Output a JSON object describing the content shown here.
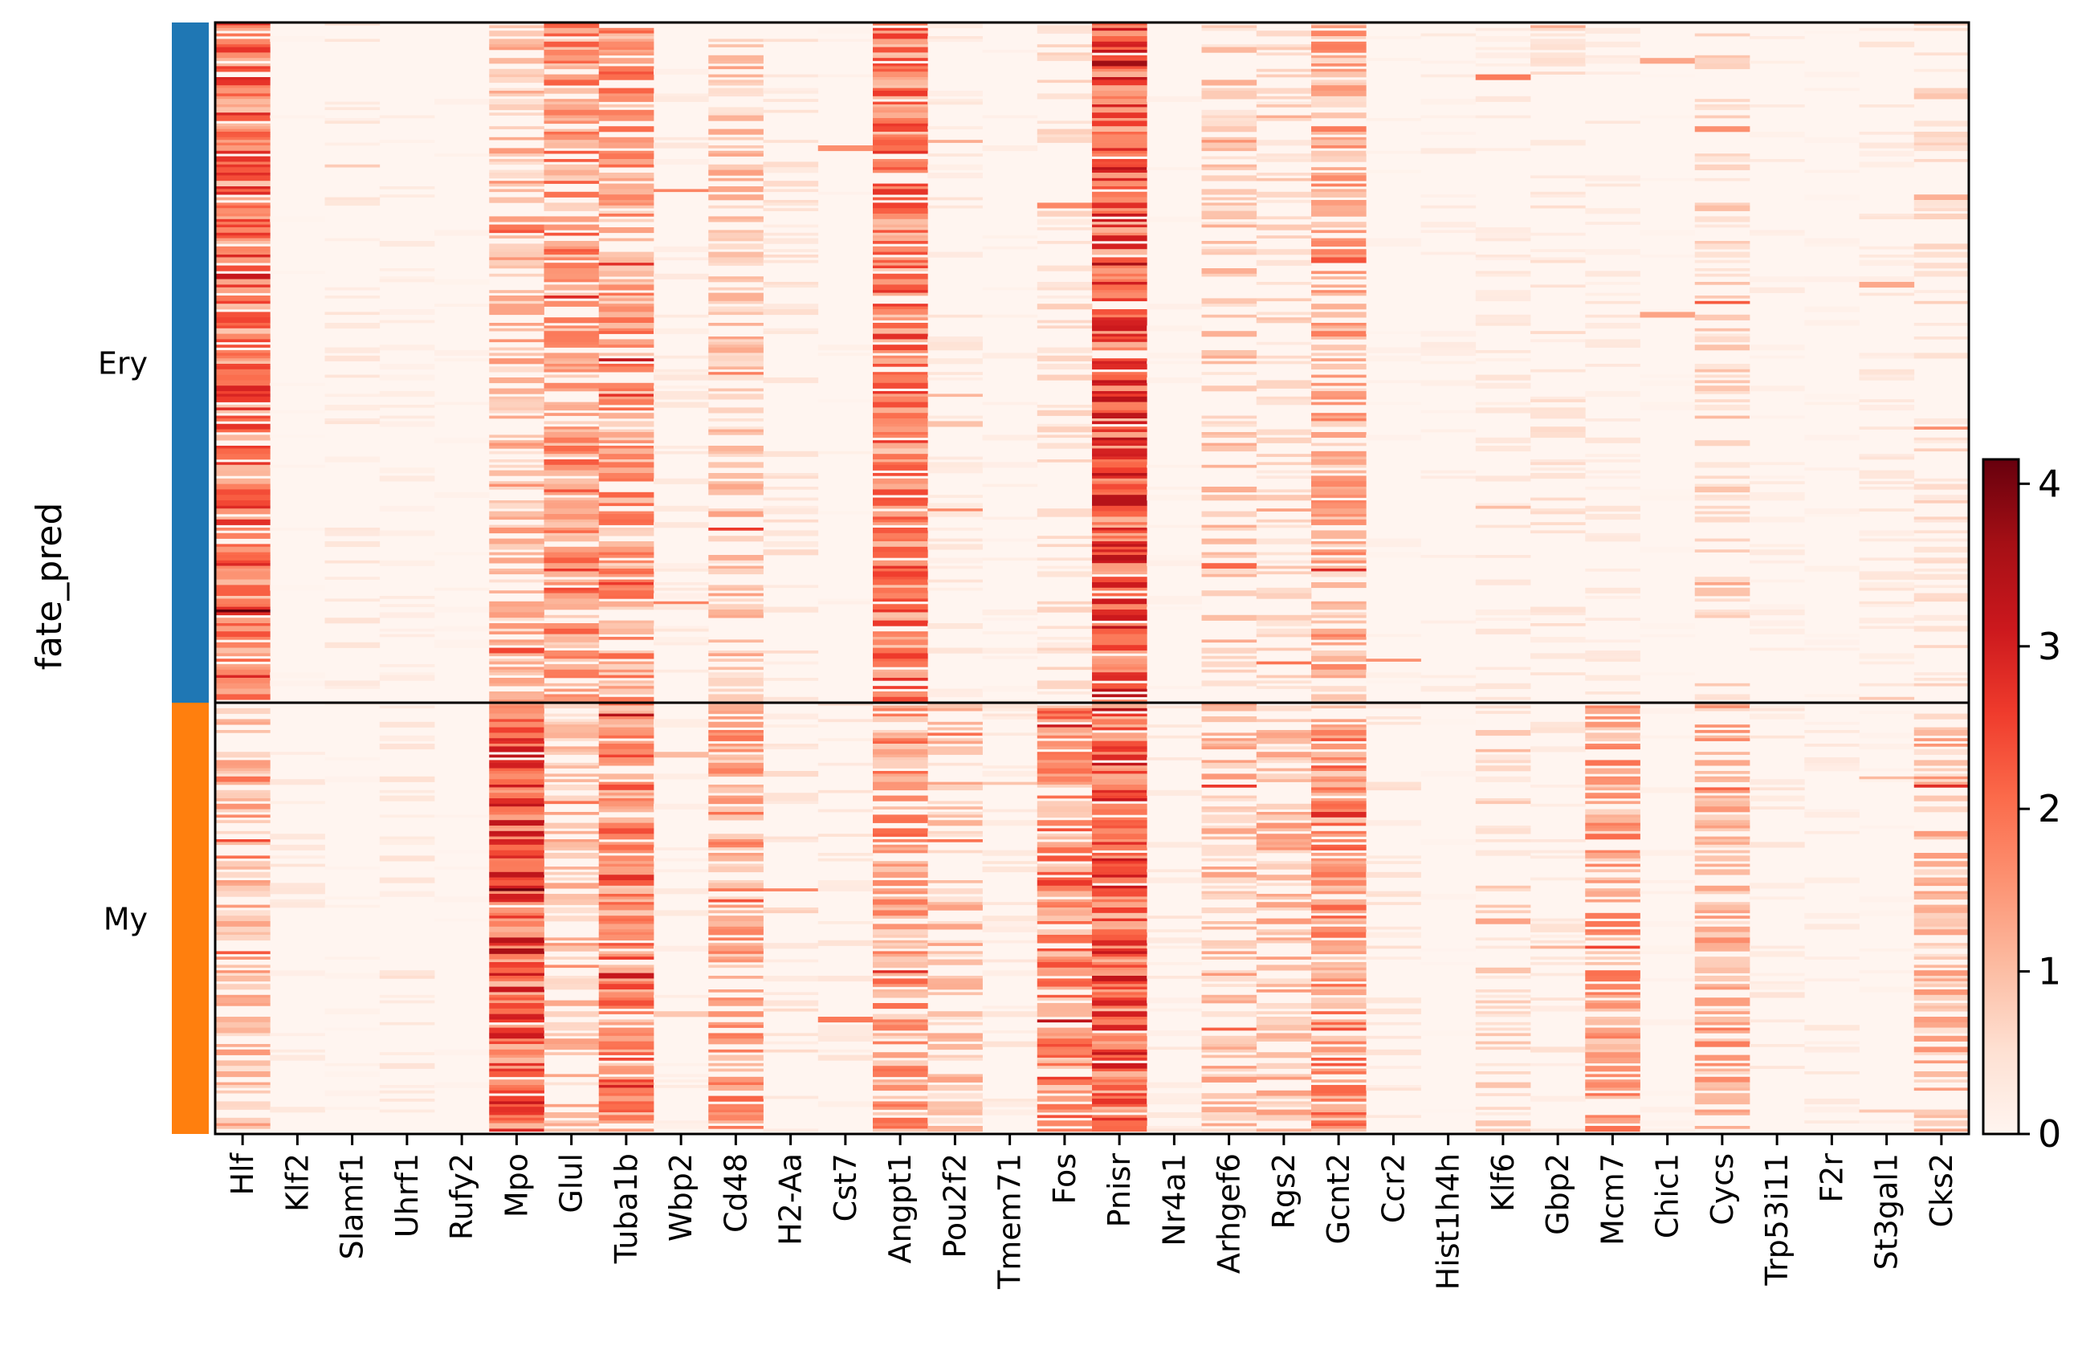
{
  "chart_data": {
    "type": "heatmap",
    "title": "",
    "xlabel": "",
    "ylabel": "fate_pred",
    "genes": [
      "Hlf",
      "Klf2",
      "Slamf1",
      "Uhrf1",
      "Rufy2",
      "Mpo",
      "Glul",
      "Tuba1b",
      "Wbp2",
      "Cd48",
      "H2-Aa",
      "Cst7",
      "Angpt1",
      "Pou2f2",
      "Tmem71",
      "Fos",
      "Pnisr",
      "Nr4a1",
      "Arhgef6",
      "Rgs2",
      "Gcnt2",
      "Ccr2",
      "Hist1h4h",
      "Klf6",
      "Gbp2",
      "Mcm7",
      "Chic1",
      "Cycs",
      "Trp53i11",
      "F2r",
      "St3gal1",
      "Cks2"
    ],
    "groups": [
      {
        "name": "Ery",
        "color": "#1f77b4",
        "fraction": 0.612
      },
      {
        "name": "My",
        "color": "#ff7f0e",
        "fraction": 0.388
      }
    ],
    "colorbar": {
      "cmap": "Reds",
      "vmin": 0,
      "vmax": 4.15,
      "ticks": [
        "0",
        "1",
        "2",
        "3",
        "4"
      ],
      "tick_values": [
        0,
        1,
        2,
        3,
        4
      ]
    },
    "mean_expression": {
      "Ery": [
        1.9,
        0.05,
        0.3,
        0.2,
        0.1,
        1.0,
        1.5,
        1.4,
        0.25,
        0.9,
        0.4,
        0.1,
        1.8,
        0.3,
        0.15,
        0.5,
        2.2,
        0.1,
        0.8,
        0.6,
        1.2,
        0.1,
        0.2,
        0.3,
        0.4,
        0.3,
        0.05,
        0.7,
        0.2,
        0.1,
        0.3,
        0.5
      ],
      "My": [
        1.0,
        0.3,
        0.1,
        0.35,
        0.05,
        2.2,
        0.9,
        1.7,
        0.2,
        1.3,
        0.4,
        0.35,
        1.4,
        0.9,
        0.3,
        1.6,
        2.1,
        0.3,
        1.0,
        1.0,
        1.5,
        0.4,
        0.05,
        0.6,
        0.35,
        1.3,
        0.1,
        1.1,
        0.3,
        0.25,
        0.1,
        1.0
      ]
    },
    "grid": false,
    "legend": "colorbar-right"
  }
}
